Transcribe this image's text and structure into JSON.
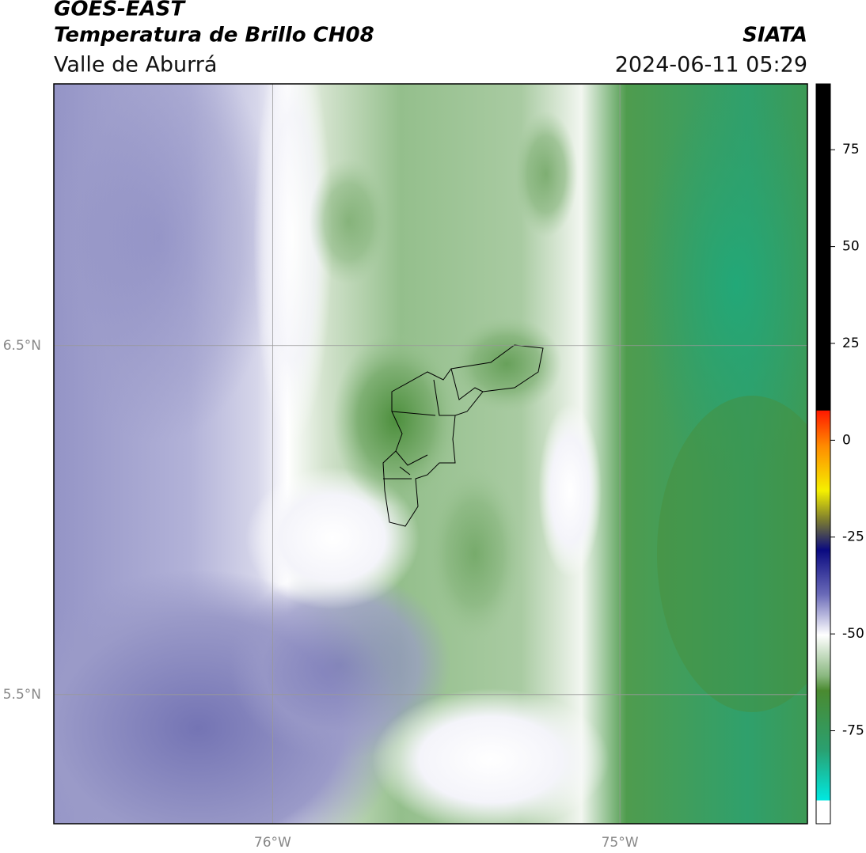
{
  "header": {
    "title": "GOES-EAST",
    "subtitle": "Temperatura de Brillo CH08",
    "region": "Valle de Aburrá",
    "source": "SIATA",
    "datetime": "2024-06-11 05:29"
  },
  "map": {
    "xlim": [
      -76.63,
      -74.46
    ],
    "ylim": [
      5.13,
      7.25
    ],
    "xticks": [
      {
        "value": -76,
        "label": "76°W"
      },
      {
        "value": -75,
        "label": "75°W"
      }
    ],
    "yticks": [
      {
        "value": 6.5,
        "label": "6.5°N"
      },
      {
        "value": 5.5,
        "label": "5.5°N"
      }
    ],
    "grid": true
  },
  "colorbar": {
    "lim": [
      -99,
      92
    ],
    "ticks": [
      75,
      50,
      25,
      0,
      -25,
      -50,
      -75
    ]
  }
}
